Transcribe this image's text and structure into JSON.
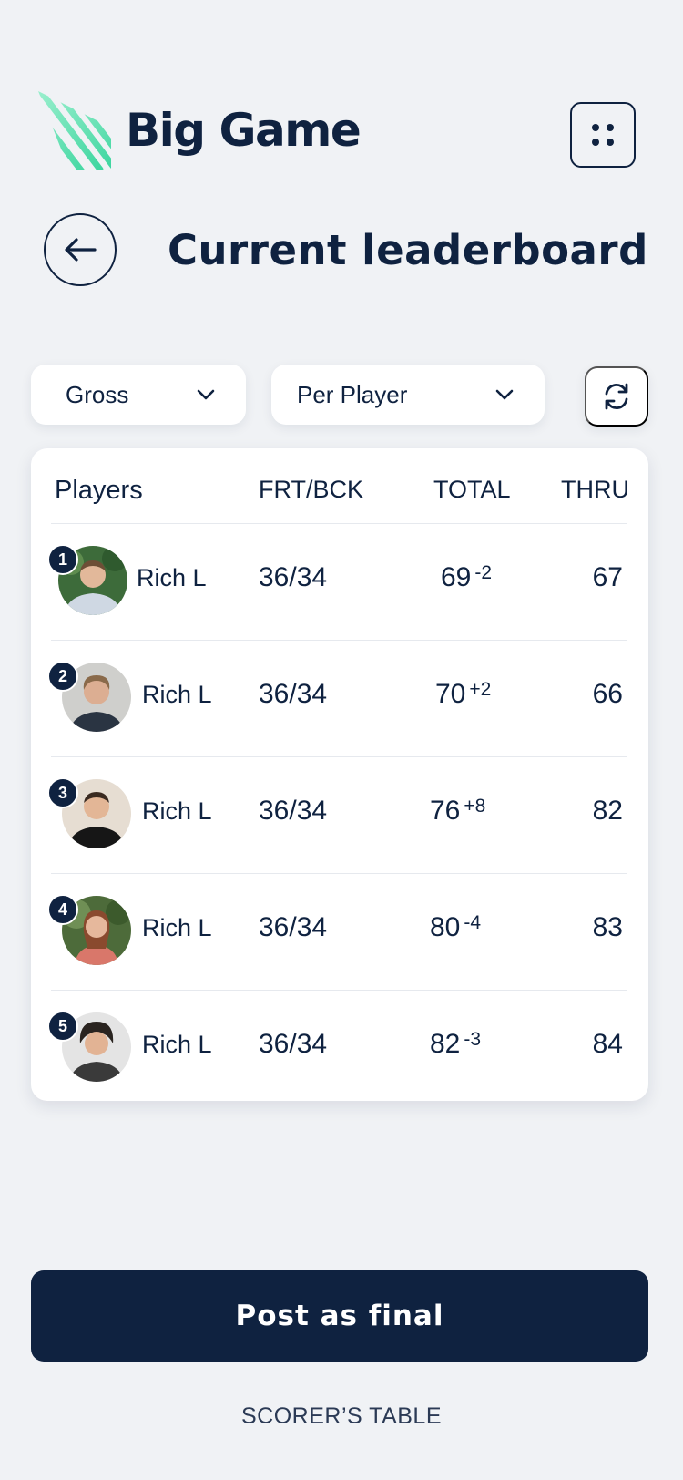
{
  "brand": {
    "name": "Big Game",
    "accent": "#3ed6a0",
    "navy": "#0f2240"
  },
  "header": {
    "title": "Current leaderboard"
  },
  "filters": {
    "scoring": {
      "selected": "Gross"
    },
    "grouping": {
      "selected": "Per Player"
    }
  },
  "table": {
    "columns": {
      "players": "Players",
      "frt_bck": "FRT/BCK",
      "total": "TOTAL",
      "thru": "THRU"
    },
    "rows": [
      {
        "rank": "1",
        "name": "Rich L",
        "frt_bck": "36/34",
        "total": "69",
        "diff": "-2",
        "thru": "67"
      },
      {
        "rank": "2",
        "name": "Rich L",
        "frt_bck": "36/34",
        "total": "70",
        "diff": "+2",
        "thru": "66"
      },
      {
        "rank": "3",
        "name": "Rich L",
        "frt_bck": "36/34",
        "total": "76",
        "diff": "+8",
        "thru": "82"
      },
      {
        "rank": "4",
        "name": "Rich L",
        "frt_bck": "36/34",
        "total": "80",
        "diff": "-4",
        "thru": "83"
      },
      {
        "rank": "5",
        "name": "Rich L",
        "frt_bck": "36/34",
        "total": "82",
        "diff": "-3",
        "thru": "84"
      }
    ]
  },
  "footer": {
    "post_label": "Post as final",
    "scorer_link": "SCORER’S TABLE"
  },
  "icons": {
    "menu": "grid-dots-icon",
    "back": "arrow-left-icon",
    "chevron": "chevron-down-icon",
    "refresh": "refresh-icon",
    "avatar": "avatar-photo"
  }
}
